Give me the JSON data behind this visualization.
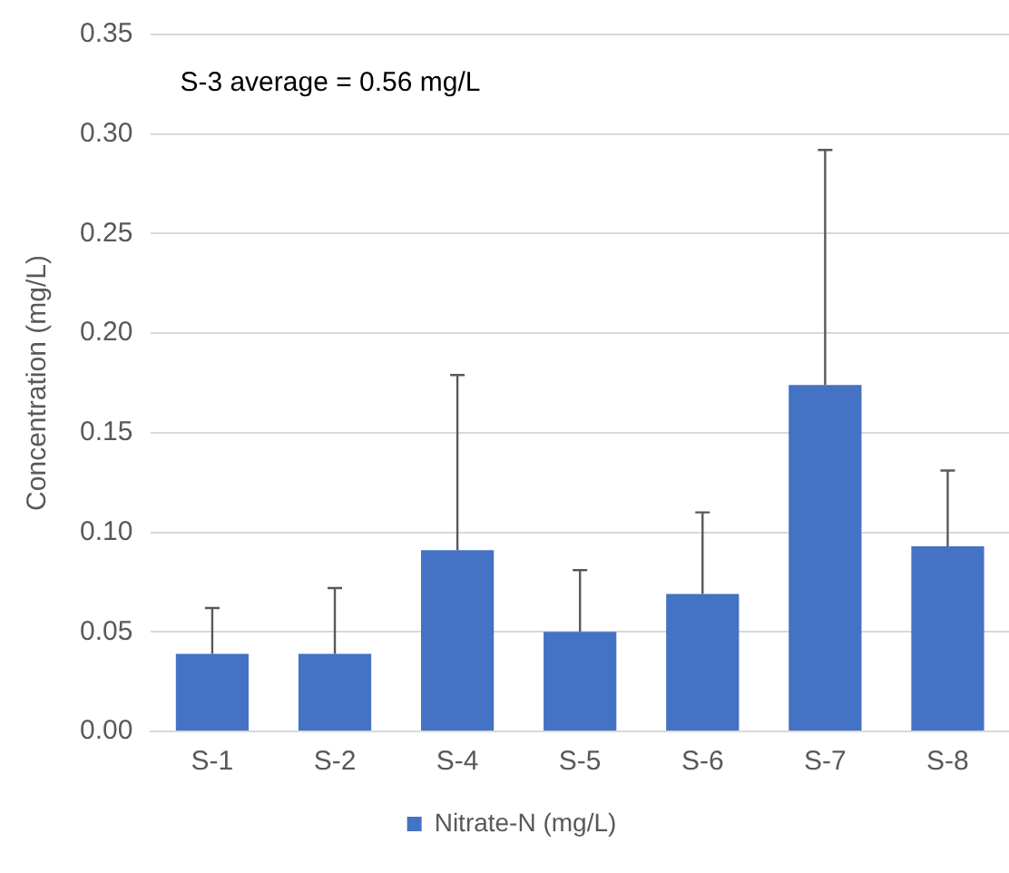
{
  "chart_data": {
    "type": "bar",
    "ylabel": "Concentration (mg/L)",
    "annotations": [
      "S-3 average = 0.56 mg/L"
    ],
    "categories": [
      "S-1",
      "S-2",
      "S-4",
      "S-5",
      "S-6",
      "S-7",
      "S-8"
    ],
    "series": [
      {
        "name": "Nitrate-N (mg/L)",
        "color": "#4472c4",
        "values": [
          0.039,
          0.039,
          0.091,
          0.05,
          0.069,
          0.174,
          0.093
        ],
        "errors": [
          [
            0.039,
            0.062
          ],
          [
            0.039,
            0.072
          ],
          [
            0.091,
            0.179
          ],
          [
            0.05,
            0.081
          ],
          [
            0.069,
            0.11
          ],
          [
            0.174,
            0.292
          ],
          [
            0.093,
            0.131
          ]
        ]
      }
    ],
    "ylim": [
      0,
      0.35
    ],
    "yticks": [
      {
        "value": 0,
        "label": "0.00"
      },
      0.05,
      {
        "value": 0.1,
        "label": "0.10"
      },
      0.15,
      {
        "value": 0.2,
        "label": "0.20"
      },
      0.25,
      {
        "value": 0.3,
        "label": "0.30"
      },
      0.35
    ],
    "grid": "y",
    "legend": "bottom"
  }
}
